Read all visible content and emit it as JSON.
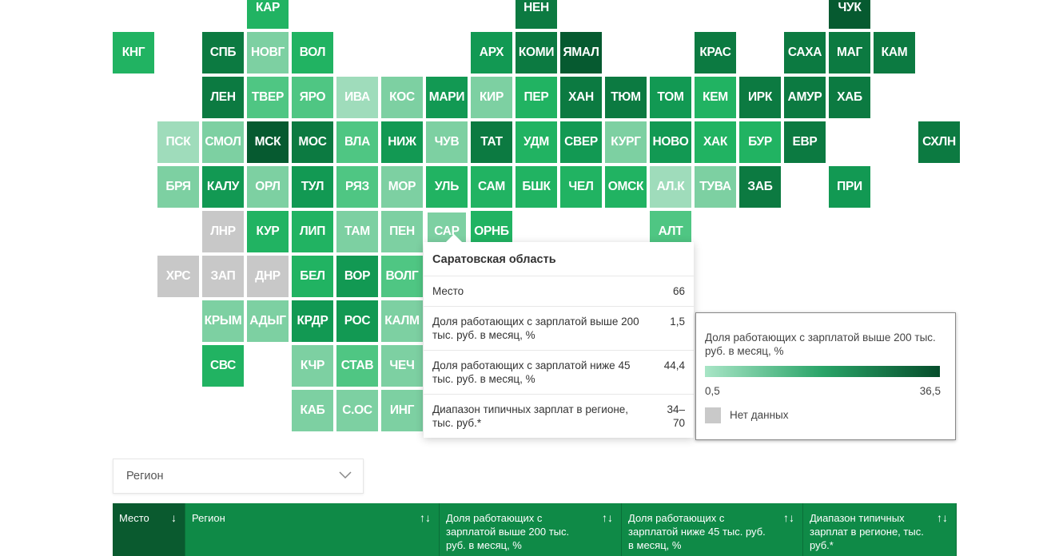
{
  "palette": {
    "1": "#9fdcbb",
    "2": "#7dd0a2",
    "3": "#4fc683",
    "4": "#21b362",
    "5": "#129953",
    "6": "#0c7a41",
    "7": "#065a30",
    "nd": "#c8c8c8"
  },
  "map_rows": [
    [
      null,
      null,
      null,
      [
        "КАР",
        "4"
      ],
      null,
      null,
      null,
      null,
      null,
      [
        "НЕН",
        "6"
      ],
      null,
      null,
      null,
      null,
      null,
      null,
      [
        "ЧУК",
        "7"
      ]
    ],
    [
      [
        "КНГ",
        "4"
      ],
      null,
      [
        "СПБ",
        "6"
      ],
      [
        "НОВГ",
        "2"
      ],
      [
        "ВОЛ",
        "4"
      ],
      null,
      null,
      null,
      [
        "АРХ",
        "5"
      ],
      [
        "КОМИ",
        "6"
      ],
      [
        "ЯМАЛ",
        "7"
      ],
      null,
      null,
      [
        "КРАС",
        "6"
      ],
      null,
      [
        "САХА",
        "6"
      ],
      [
        "МАГ",
        "6"
      ],
      [
        "КАМ",
        "6"
      ]
    ],
    [
      null,
      null,
      [
        "ЛЕН",
        "6"
      ],
      [
        "ТВЕР",
        "3"
      ],
      [
        "ЯРО",
        "3"
      ],
      [
        "ИВА",
        "1"
      ],
      [
        "КОС",
        "2"
      ],
      [
        "МАРИ",
        "5"
      ],
      [
        "КИР",
        "2"
      ],
      [
        "ПЕР",
        "4"
      ],
      [
        "ХАН",
        "6"
      ],
      [
        "ТЮМ",
        "6"
      ],
      [
        "ТОМ",
        "5"
      ],
      [
        "КЕМ",
        "4"
      ],
      [
        "ИРК",
        "6"
      ],
      [
        "АМУР",
        "6"
      ],
      [
        "ХАБ",
        "6"
      ]
    ],
    [
      null,
      [
        "ПСК",
        "1"
      ],
      [
        "СМОЛ",
        "2"
      ],
      [
        "МСК",
        "7"
      ],
      [
        "МОС",
        "6"
      ],
      [
        "ВЛА",
        "3"
      ],
      [
        "НИЖ",
        "5"
      ],
      [
        "ЧУВ",
        "2"
      ],
      [
        "ТАТ",
        "6"
      ],
      [
        "УДМ",
        "4"
      ],
      [
        "СВЕР",
        "5"
      ],
      [
        "КУРГ",
        "2"
      ],
      [
        "НОВО",
        "5"
      ],
      [
        "ХАК",
        "4"
      ],
      [
        "БУР",
        "4"
      ],
      [
        "ЕВР",
        "6"
      ],
      null,
      null,
      [
        "СХЛН",
        "6"
      ]
    ],
    [
      null,
      [
        "БРЯ",
        "2"
      ],
      [
        "КАЛУ",
        "5"
      ],
      [
        "ОРЛ",
        "2"
      ],
      [
        "ТУЛ",
        "5"
      ],
      [
        "РЯЗ",
        "3"
      ],
      [
        "МОР",
        "2"
      ],
      [
        "УЛЬ",
        "4"
      ],
      [
        "САМ",
        "4"
      ],
      [
        "БШК",
        "4"
      ],
      [
        "ЧЕЛ",
        "4"
      ],
      [
        "ОМСК",
        "4"
      ],
      [
        "АЛ.К",
        "1"
      ],
      [
        "ТУВА",
        "2"
      ],
      [
        "ЗАБ",
        "6"
      ],
      null,
      [
        "ПРИ",
        "5"
      ]
    ],
    [
      null,
      null,
      [
        "ЛНР",
        "nd"
      ],
      [
        "КУР",
        "4"
      ],
      [
        "ЛИП",
        "4"
      ],
      [
        "ТАМ",
        "2"
      ],
      [
        "ПЕН",
        "2"
      ],
      [
        "САР",
        "2"
      ],
      [
        "ОРНБ",
        "4"
      ],
      null,
      null,
      null,
      [
        "АЛТ",
        "3"
      ]
    ],
    [
      null,
      [
        "ХРС",
        "nd"
      ],
      [
        "ЗАП",
        "nd"
      ],
      [
        "ДНР",
        "nd"
      ],
      [
        "БЕЛ",
        "4"
      ],
      [
        "ВОР",
        "5"
      ],
      [
        "ВОЛГ",
        "3"
      ]
    ],
    [
      null,
      null,
      [
        "КРЫМ",
        "2"
      ],
      [
        "АДЫГ",
        "2"
      ],
      [
        "КРДР",
        "5"
      ],
      [
        "РОС",
        "5"
      ],
      [
        "КАЛМ",
        "2"
      ]
    ],
    [
      null,
      null,
      [
        "СВС",
        "4"
      ],
      null,
      [
        "КЧР",
        "2"
      ],
      [
        "СТАВ",
        "3"
      ],
      [
        "ЧЕЧ",
        "2"
      ]
    ],
    [
      null,
      null,
      null,
      null,
      [
        "КАБ",
        "2"
      ],
      [
        "С.ОС",
        "2"
      ],
      [
        "ИНГ",
        "2"
      ]
    ]
  ],
  "hovered": "САР",
  "tooltip": {
    "title": "Саратовская область",
    "rows": [
      {
        "k": "Место",
        "v": "66"
      },
      {
        "k": "Доля работающих с зарплатой выше 200 тыс. руб. в месяц, %",
        "v": "1,5"
      },
      {
        "k": "Доля работающих с зарплатой ниже 45 тыс. руб. в месяц, %",
        "v": "44,4"
      },
      {
        "k": "Диапазон типичных зарплат в регионе, тыс. руб.*",
        "v": "34–70"
      }
    ]
  },
  "legend": {
    "title": "Доля работающих с зарплатой выше 200 тыс. руб. в месяц, %",
    "min": "0,5",
    "max": "36,5",
    "no_data": "Нет данных"
  },
  "filter": {
    "placeholder": "Регион"
  },
  "table": {
    "headers": [
      {
        "label": "Место",
        "sort": "↓"
      },
      {
        "label": "Регион",
        "sort": "↑↓"
      },
      {
        "label": "Доля работающих с зарплатой выше 200 тыс. руб. в месяц, %",
        "sort": "↑↓"
      },
      {
        "label": "Доля работающих с зарплатой ниже 45 тыс. руб. в месяц, %",
        "sort": "↑↓"
      },
      {
        "label": "Диапазон типичных зарплат в регионе, тыс. руб.*",
        "sort": "↑↓"
      }
    ]
  }
}
